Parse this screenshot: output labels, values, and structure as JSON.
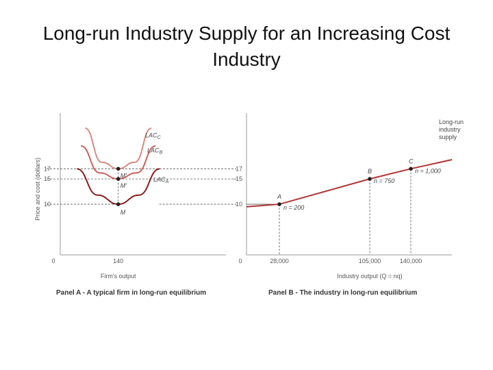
{
  "slide": {
    "title_line1": "Long-run Industry Supply for an Increasing Cost",
    "title_line2": "Industry"
  },
  "colors": {
    "lac_a": "#8b1a1a",
    "lac_b": "#c9605a",
    "lac_c": "#d98a82",
    "supply": "#b33333",
    "axis": "#333333",
    "guide": "#555555"
  },
  "chart_data": [
    {
      "type": "line",
      "panel": "A",
      "caption": "Panel A - A typical firm in long-run equilibrium",
      "xlabel": "Firm's output",
      "ylabel": "Price and cost (dollars)",
      "xlim": [
        0,
        400
      ],
      "ylim": [
        0,
        28
      ],
      "x_ticks": [
        {
          "value": 0,
          "label": "0"
        },
        {
          "value": 140,
          "label": "140"
        }
      ],
      "y_ticks": [
        {
          "value": 17,
          "label": "17"
        },
        {
          "value": 15,
          "label": "15"
        },
        {
          "value": 10,
          "label": "10"
        }
      ],
      "series": [
        {
          "name": "LAC_A",
          "label_main": "LAC",
          "label_sub": "A",
          "min_x": 140,
          "min_y": 10,
          "points": [
            [
              40,
              17
            ],
            [
              90,
              11.8
            ],
            [
              140,
              10
            ],
            [
              190,
              11.8
            ],
            [
              240,
              17
            ]
          ]
        },
        {
          "name": "LAC_B",
          "label_main": "LAC",
          "label_sub": "B",
          "min_x": 140,
          "min_y": 15,
          "points": [
            [
              50,
              21.5
            ],
            [
              95,
              16.2
            ],
            [
              140,
              15
            ],
            [
              185,
              16.2
            ],
            [
              230,
              21.5
            ]
          ]
        },
        {
          "name": "LAC_C",
          "label_main": "LAC",
          "label_sub": "C",
          "min_x": 140,
          "min_y": 17,
          "points": [
            [
              60,
              25
            ],
            [
              100,
              18.3
            ],
            [
              140,
              17
            ],
            [
              180,
              18.3
            ],
            [
              220,
              25
            ]
          ]
        }
      ],
      "points": [
        {
          "label": "M",
          "x": 140,
          "y": 10
        },
        {
          "label": "M'",
          "x": 140,
          "y": 15
        },
        {
          "label": "M'",
          "x": 140,
          "y": 17
        }
      ]
    },
    {
      "type": "line",
      "panel": "B",
      "caption": "Panel B - The industry in long-run equilibrium",
      "xlabel": "Industry output (Q = nq)",
      "xlim": [
        0,
        175000
      ],
      "ylim": [
        0,
        28
      ],
      "x_ticks": [
        {
          "value": 0,
          "label": "0"
        },
        {
          "value": 28000,
          "label": "28,000"
        },
        {
          "value": 105000,
          "label": "105,000"
        },
        {
          "value": 140000,
          "label": "140,000"
        }
      ],
      "y_ticks": [
        {
          "value": 17,
          "label": "17"
        },
        {
          "value": 15,
          "label": "15"
        },
        {
          "value": 10,
          "label": "10"
        }
      ],
      "series": [
        {
          "name": "Long-run industry supply",
          "label_lines": [
            "Long-run",
            "industry",
            "supply"
          ],
          "points": [
            [
              0,
              9.5
            ],
            [
              28000,
              10
            ],
            [
              105000,
              15
            ],
            [
              140000,
              17
            ],
            [
              175000,
              18.8
            ]
          ]
        }
      ],
      "points": [
        {
          "label": "A",
          "x": 28000,
          "y": 10,
          "n_label": "n = 200"
        },
        {
          "label": "B",
          "x": 105000,
          "y": 15,
          "n_label": "n = 750"
        },
        {
          "label": "C",
          "x": 140000,
          "y": 17,
          "n_label": "n = 1,000"
        }
      ]
    }
  ]
}
